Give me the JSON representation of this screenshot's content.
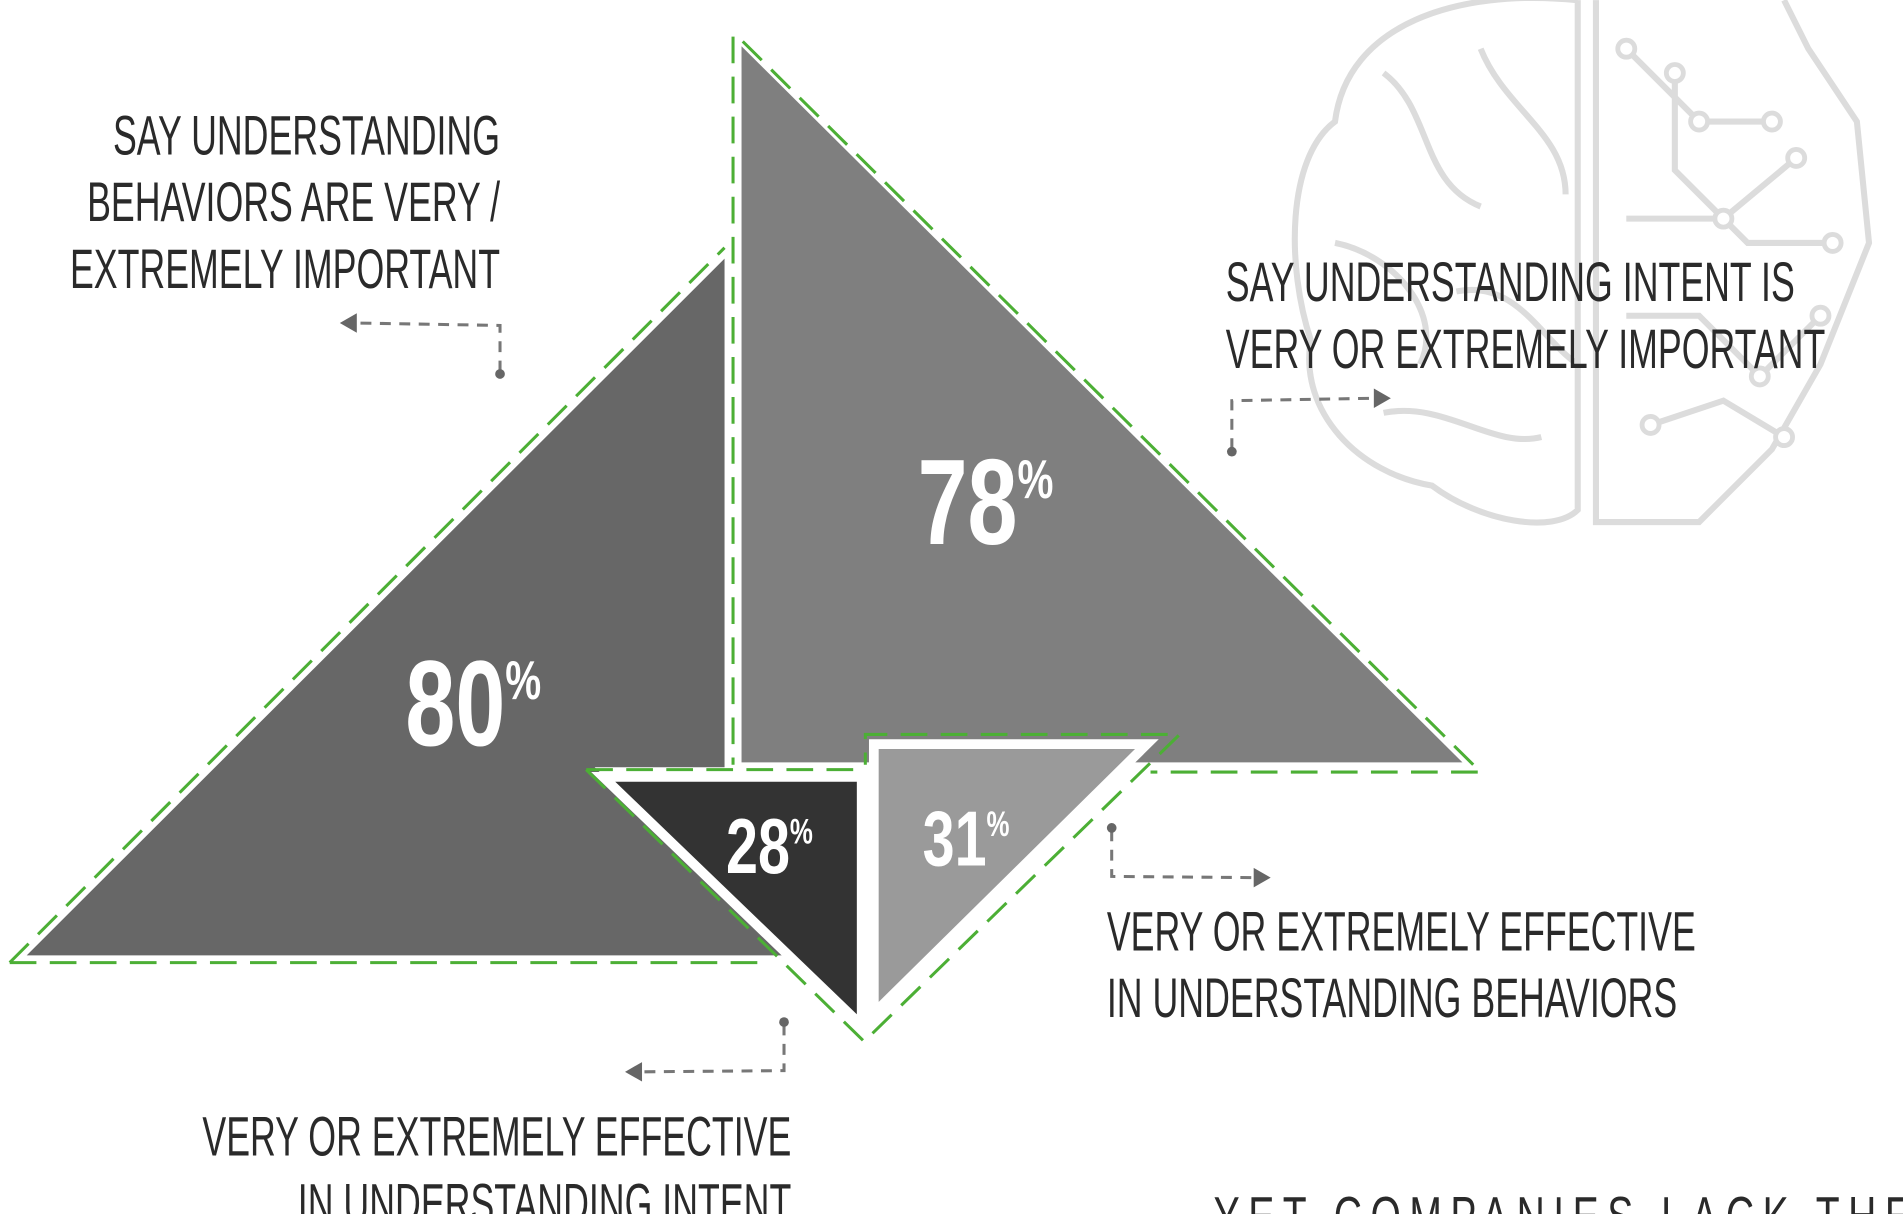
{
  "chart_data": {
    "type": "triangle",
    "values": [
      80,
      78,
      28,
      31
    ],
    "value_labels": [
      "80%",
      "78%",
      "28%",
      "31%"
    ],
    "colors": [
      "#676767",
      "#7f7f7f",
      "#333333",
      "#9a9a9a"
    ],
    "outline_color": "#4caf35",
    "annotations": [
      {
        "lines": [
          "SAY UNDERSTANDING",
          "BEHAVIORS ARE VERY /",
          "EXTREMELY IMPORTANT"
        ]
      },
      {
        "lines": [
          "SAY UNDERSTANDING INTENT IS",
          "VERY OR EXTREMELY IMPORTANT"
        ]
      },
      {
        "lines": [
          "VERY OR EXTREMELY EFFECTIVE",
          "IN UNDERSTANDING INTENT"
        ]
      },
      {
        "lines": [
          "VERY OR EXTREMELY EFFECTIVE",
          "IN UNDERSTANDING BEHAVIORS"
        ]
      }
    ],
    "footer": "YET COMPANIES LACK THE"
  }
}
